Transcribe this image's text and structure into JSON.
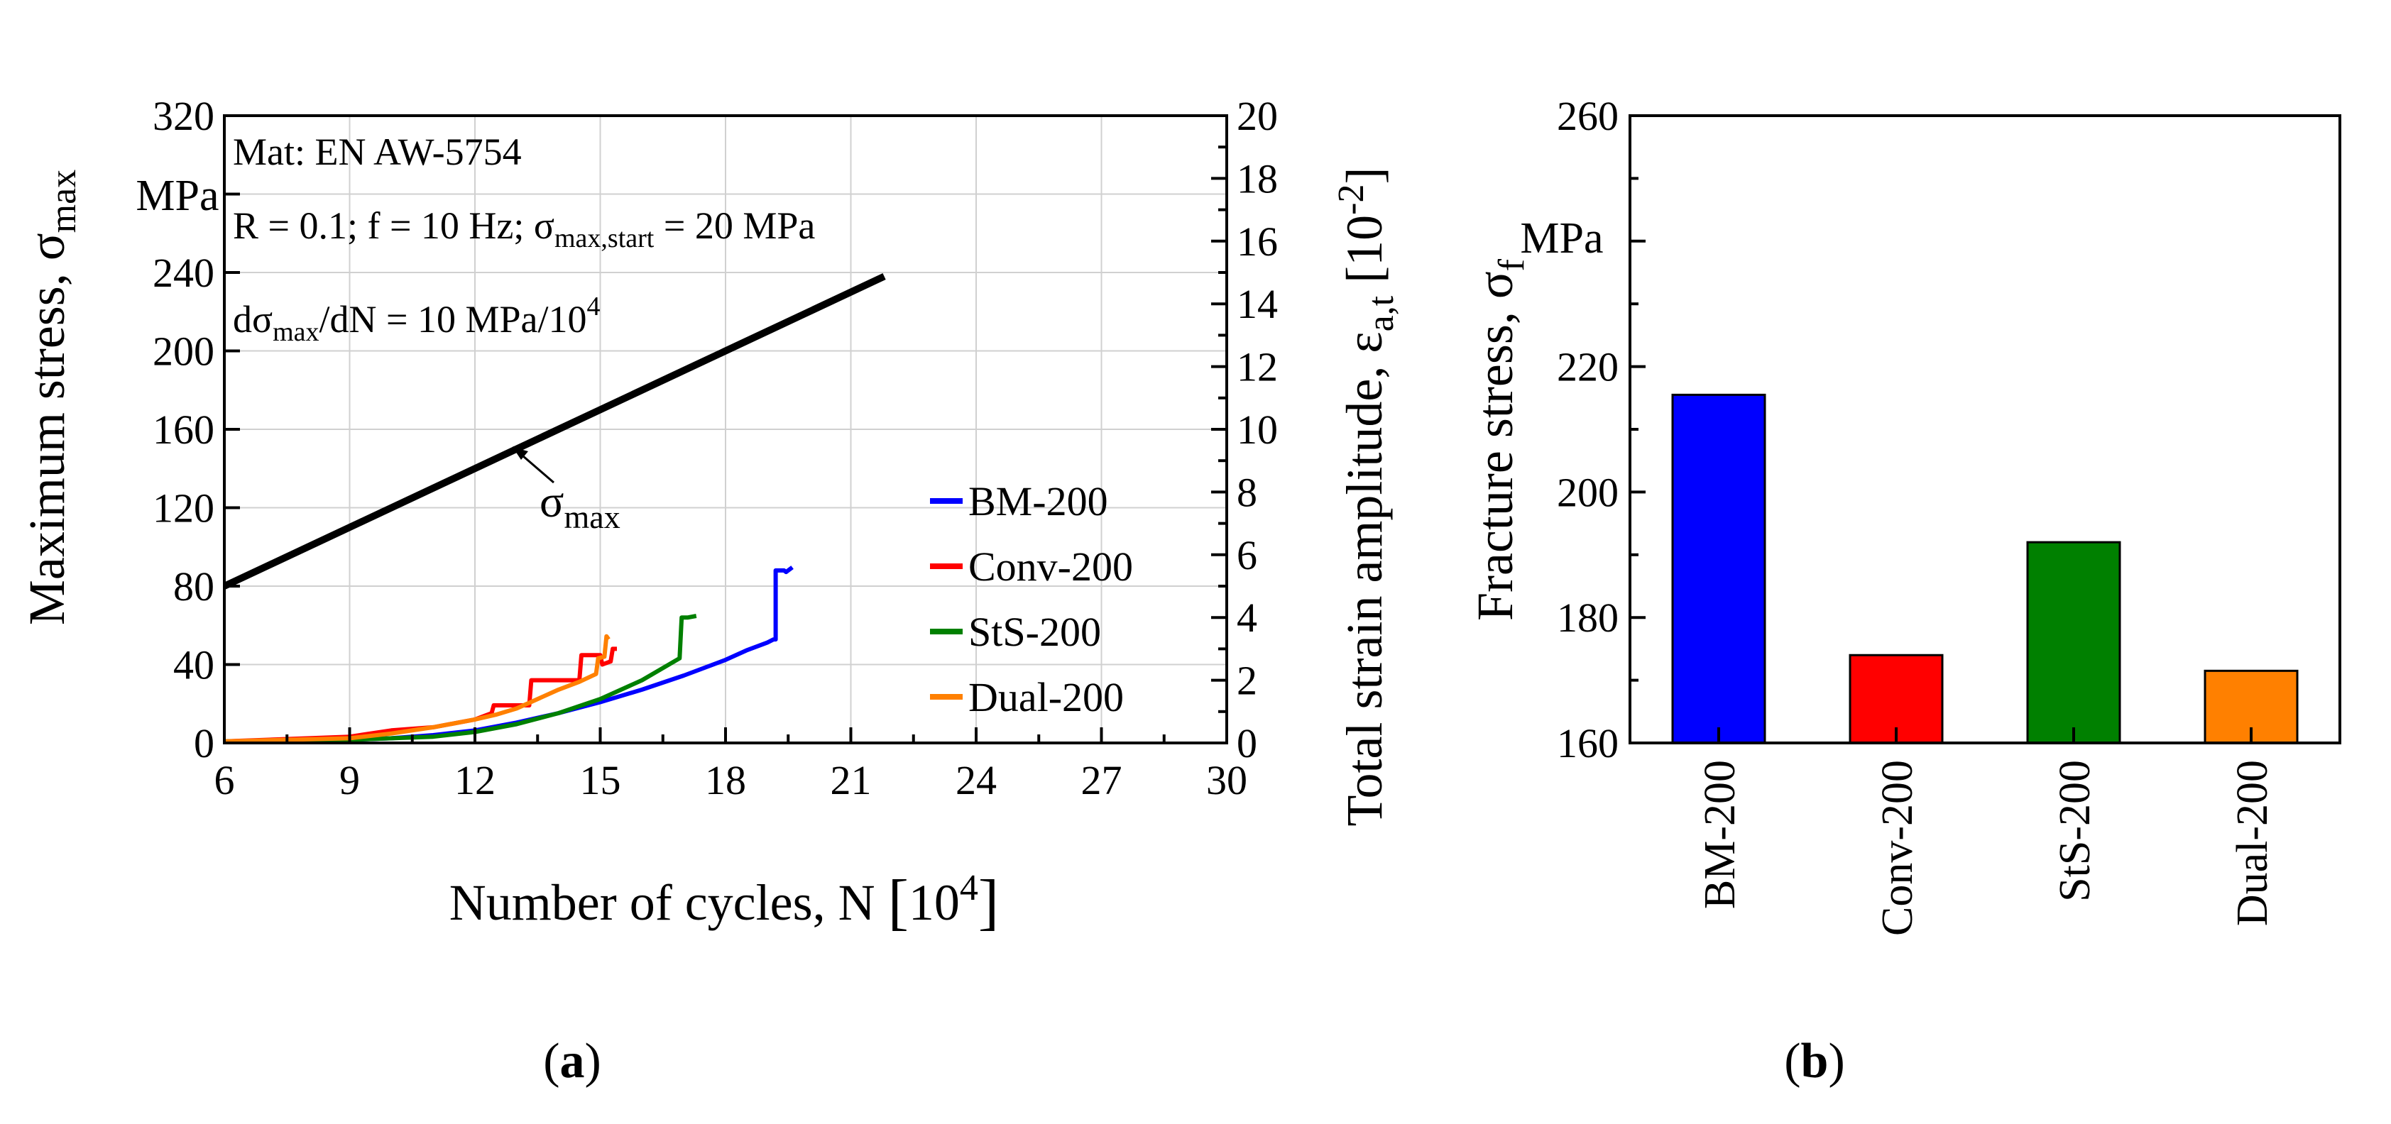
{
  "chart_data": [
    {
      "type": "line",
      "panel_label": "(a)",
      "panel_letter": "a",
      "annotations": {
        "mat": "Mat: EN AW-5754",
        "cond_prefix": "R = 0.1; f = 10 Hz; σ",
        "cond_sub": "max,start",
        "cond_suffix": " = 20 MPa",
        "rate_prefix": "dσ",
        "rate_sub": "max",
        "rate_mid": "/dN = 10 MPa/10",
        "rate_sup": "4",
        "sigma_label": "σ",
        "sigma_sub": "max"
      },
      "xlabel": {
        "text": "Number of cycles, N ",
        "bracket_open": "[",
        "base": "10",
        "sup": "4",
        "bracket_close": "]"
      },
      "ylabel": {
        "text": "Maximum stress, σ",
        "sub": "max",
        "unit": "MPa"
      },
      "y2label": {
        "text": "Total strain amplitude, ε",
        "sub": "a,t",
        "bracket": " [10",
        "sup": "-2",
        "close": "]"
      },
      "xlim": [
        6,
        30
      ],
      "ylim": [
        0,
        320
      ],
      "y2lim": [
        0,
        20
      ],
      "xticks": [
        "6",
        "9",
        "12",
        "15",
        "18",
        "21",
        "24",
        "27",
        "30"
      ],
      "yticks": [
        "0",
        "40",
        "80",
        "120",
        "160",
        "200",
        "240",
        "320"
      ],
      "y2ticks": [
        "0",
        "2",
        "4",
        "6",
        "8",
        "10",
        "12",
        "14",
        "16",
        "18",
        "20"
      ],
      "grid": true,
      "legend_position": "lower-right",
      "stress_series": {
        "axis": "left",
        "color": "#000000",
        "x": [
          6,
          21.8
        ],
        "y": [
          80,
          238
        ]
      },
      "series": [
        {
          "name": "BM-200",
          "color": "#0000ff",
          "axis": "right",
          "x": [
            6,
            9,
            10,
            11,
            12,
            13,
            14,
            15,
            16,
            17,
            18,
            18.5,
            19.0,
            19.15,
            19.2,
            19.2,
            19.4,
            19.45,
            19.6
          ],
          "y": [
            0.05,
            0.1,
            0.15,
            0.25,
            0.4,
            0.65,
            0.95,
            1.3,
            1.7,
            2.15,
            2.65,
            2.95,
            3.2,
            3.3,
            3.3,
            5.5,
            5.5,
            5.45,
            5.6
          ]
        },
        {
          "name": "Conv-200",
          "color": "#ff0000",
          "axis": "right",
          "x": [
            6,
            9,
            9.5,
            10,
            11,
            12,
            12.4,
            12.45,
            13.3,
            13.35,
            14.5,
            14.55,
            15.0,
            15.05,
            15.25,
            15.3,
            15.4
          ],
          "y": [
            0.05,
            0.2,
            0.3,
            0.4,
            0.5,
            0.75,
            0.95,
            1.2,
            1.2,
            2.0,
            2.0,
            2.8,
            2.8,
            2.5,
            2.6,
            3.0,
            3.0
          ]
        },
        {
          "name": "StS-200",
          "color": "#008000",
          "axis": "right",
          "x": [
            6,
            9,
            11,
            12,
            13,
            14,
            15,
            16,
            16.9,
            16.95,
            17.1,
            17.3
          ],
          "y": [
            0.05,
            0.1,
            0.2,
            0.35,
            0.6,
            0.95,
            1.4,
            2.0,
            2.7,
            4.0,
            4.0,
            4.05
          ]
        },
        {
          "name": "Dual-200",
          "color": "#ff8000",
          "axis": "right",
          "x": [
            6,
            9,
            10,
            11,
            12,
            12.5,
            13,
            13.5,
            14,
            14.5,
            14.9,
            14.95,
            15.1,
            15.15,
            15.2
          ],
          "y": [
            0.05,
            0.15,
            0.3,
            0.5,
            0.75,
            0.9,
            1.1,
            1.4,
            1.7,
            1.95,
            2.2,
            2.7,
            2.75,
            3.4,
            3.3
          ]
        }
      ]
    },
    {
      "type": "bar",
      "panel_label": "(b)",
      "panel_letter": "b",
      "categories": [
        "BM-200",
        "Conv-200",
        "StS-200",
        "Dual-200"
      ],
      "values": [
        215.5,
        174,
        192,
        171.5
      ],
      "colors": [
        "#0000ff",
        "#ff0000",
        "#008000",
        "#ff8000"
      ],
      "ylabel": {
        "text": "Fracture stress, σ",
        "sub": "f",
        "unit": "MPa"
      },
      "ylim": [
        160,
        260
      ],
      "yticks": [
        "160",
        "180",
        "200",
        "220",
        "260"
      ],
      "grid": false
    }
  ]
}
